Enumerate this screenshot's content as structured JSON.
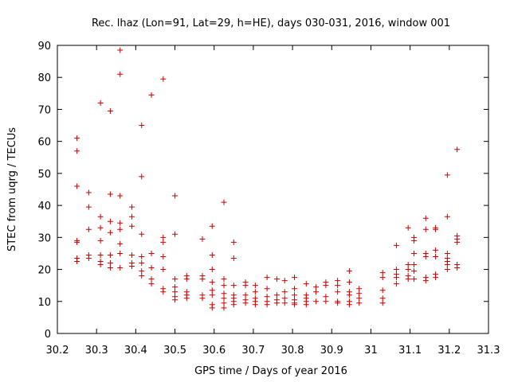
{
  "chart_data": {
    "type": "scatter",
    "title": "Rec. lhaz (Lon=91, Lat=29, h=HE), days 030-031, 2016, window 001",
    "xlabel": "GPS time / Days of year 2016",
    "ylabel": "STEC from uqrg / TECUs",
    "xlim": [
      30.2,
      31.3
    ],
    "ylim": [
      0,
      90
    ],
    "xticks": [
      "30.2",
      "30.3",
      "30.4",
      "30.5",
      "30.6",
      "30.7",
      "30.8",
      "30.9",
      "31",
      "31.1",
      "31.2",
      "31.3"
    ],
    "yticks": [
      "0",
      "10",
      "20",
      "30",
      "40",
      "50",
      "60",
      "70",
      "80",
      "90"
    ],
    "grid": false,
    "legend": false,
    "marker": "plus",
    "color": "#cc0000",
    "series": [
      {
        "points": [
          [
            30.25,
            61
          ],
          [
            30.25,
            57
          ],
          [
            30.25,
            46
          ],
          [
            30.25,
            29
          ],
          [
            30.25,
            28.5
          ],
          [
            30.25,
            23.5
          ],
          [
            30.25,
            22.5
          ],
          [
            30.28,
            44
          ],
          [
            30.28,
            39.5
          ],
          [
            30.28,
            32.5
          ],
          [
            30.28,
            24.5
          ],
          [
            30.28,
            23.5
          ],
          [
            30.31,
            72
          ],
          [
            30.31,
            36.5
          ],
          [
            30.31,
            33
          ],
          [
            30.31,
            29
          ],
          [
            30.31,
            24.5
          ],
          [
            30.31,
            22.5
          ],
          [
            30.31,
            21.5
          ],
          [
            30.335,
            69.5
          ],
          [
            30.335,
            43.5
          ],
          [
            30.335,
            35
          ],
          [
            30.335,
            31.5
          ],
          [
            30.335,
            24.5
          ],
          [
            30.335,
            22
          ],
          [
            30.335,
            20.5
          ],
          [
            30.36,
            88.5
          ],
          [
            30.36,
            81
          ],
          [
            30.36,
            43
          ],
          [
            30.36,
            34.5
          ],
          [
            30.36,
            32.5
          ],
          [
            30.36,
            28
          ],
          [
            30.36,
            25
          ],
          [
            30.36,
            20.5
          ],
          [
            30.39,
            39.5
          ],
          [
            30.39,
            36.5
          ],
          [
            30.39,
            33.5
          ],
          [
            30.39,
            24.5
          ],
          [
            30.39,
            22
          ],
          [
            30.39,
            21
          ],
          [
            30.415,
            65
          ],
          [
            30.415,
            49
          ],
          [
            30.415,
            31
          ],
          [
            30.415,
            24
          ],
          [
            30.415,
            22
          ],
          [
            30.415,
            19.5
          ],
          [
            30.415,
            18
          ],
          [
            30.44,
            74.5
          ],
          [
            30.44,
            25
          ],
          [
            30.44,
            20.5
          ],
          [
            30.44,
            17
          ],
          [
            30.44,
            15.5
          ],
          [
            30.47,
            79.5
          ],
          [
            30.47,
            30
          ],
          [
            30.47,
            28.5
          ],
          [
            30.47,
            24
          ],
          [
            30.47,
            20
          ],
          [
            30.47,
            14
          ],
          [
            30.47,
            13
          ],
          [
            30.5,
            43
          ],
          [
            30.5,
            31
          ],
          [
            30.5,
            17
          ],
          [
            30.5,
            14.5
          ],
          [
            30.5,
            13
          ],
          [
            30.5,
            11.5
          ],
          [
            30.5,
            10.5
          ],
          [
            30.53,
            18
          ],
          [
            30.53,
            17
          ],
          [
            30.53,
            13
          ],
          [
            30.53,
            12
          ],
          [
            30.53,
            11
          ],
          [
            30.57,
            29.5
          ],
          [
            30.57,
            18
          ],
          [
            30.57,
            17
          ],
          [
            30.57,
            12
          ],
          [
            30.57,
            11
          ],
          [
            30.595,
            33.5
          ],
          [
            30.595,
            24.5
          ],
          [
            30.595,
            20
          ],
          [
            30.595,
            16
          ],
          [
            30.595,
            13.5
          ],
          [
            30.595,
            12
          ],
          [
            30.595,
            9
          ],
          [
            30.595,
            8
          ],
          [
            30.625,
            41
          ],
          [
            30.625,
            17
          ],
          [
            30.625,
            15
          ],
          [
            30.625,
            12.5
          ],
          [
            30.625,
            11
          ],
          [
            30.625,
            9.5
          ],
          [
            30.625,
            8
          ],
          [
            30.65,
            28.5
          ],
          [
            30.65,
            23.5
          ],
          [
            30.65,
            15
          ],
          [
            30.65,
            12
          ],
          [
            30.65,
            11
          ],
          [
            30.65,
            10
          ],
          [
            30.65,
            9
          ],
          [
            30.68,
            16
          ],
          [
            30.68,
            15
          ],
          [
            30.68,
            12
          ],
          [
            30.68,
            10.5
          ],
          [
            30.68,
            9.5
          ],
          [
            30.705,
            15
          ],
          [
            30.705,
            13
          ],
          [
            30.705,
            11
          ],
          [
            30.705,
            10
          ],
          [
            30.705,
            9
          ],
          [
            30.735,
            17.5
          ],
          [
            30.735,
            14
          ],
          [
            30.735,
            11.5
          ],
          [
            30.735,
            10
          ],
          [
            30.735,
            9
          ],
          [
            30.76,
            17
          ],
          [
            30.76,
            12
          ],
          [
            30.76,
            10.5
          ],
          [
            30.76,
            9.5
          ],
          [
            30.78,
            16.5
          ],
          [
            30.78,
            13
          ],
          [
            30.78,
            11
          ],
          [
            30.78,
            9.5
          ],
          [
            30.805,
            17.5
          ],
          [
            30.805,
            14
          ],
          [
            30.805,
            12
          ],
          [
            30.805,
            10.5
          ],
          [
            30.805,
            9.5
          ],
          [
            30.805,
            9
          ],
          [
            30.835,
            15.5
          ],
          [
            30.835,
            12
          ],
          [
            30.835,
            11
          ],
          [
            30.835,
            10
          ],
          [
            30.835,
            9
          ],
          [
            30.86,
            14.5
          ],
          [
            30.86,
            13
          ],
          [
            30.86,
            10
          ],
          [
            30.885,
            16
          ],
          [
            30.885,
            15
          ],
          [
            30.885,
            11.5
          ],
          [
            30.885,
            10
          ],
          [
            30.915,
            16.5
          ],
          [
            30.915,
            15
          ],
          [
            30.915,
            13
          ],
          [
            30.915,
            10
          ],
          [
            30.915,
            9.5
          ],
          [
            30.945,
            19.5
          ],
          [
            30.945,
            16
          ],
          [
            30.945,
            13
          ],
          [
            30.945,
            12
          ],
          [
            30.945,
            10
          ],
          [
            30.945,
            9
          ],
          [
            30.97,
            14
          ],
          [
            30.97,
            12.5
          ],
          [
            30.97,
            11
          ],
          [
            30.97,
            9.5
          ],
          [
            31.03,
            19
          ],
          [
            31.03,
            17.5
          ],
          [
            31.03,
            13.5
          ],
          [
            31.03,
            11
          ],
          [
            31.03,
            9.5
          ],
          [
            31.065,
            27.5
          ],
          [
            31.065,
            20
          ],
          [
            31.065,
            18.5
          ],
          [
            31.065,
            17.5
          ],
          [
            31.065,
            15.5
          ],
          [
            31.095,
            33
          ],
          [
            31.095,
            21.5
          ],
          [
            31.095,
            20
          ],
          [
            31.095,
            18
          ],
          [
            31.095,
            17
          ],
          [
            31.11,
            30
          ],
          [
            31.11,
            29
          ],
          [
            31.11,
            25
          ],
          [
            31.11,
            21.5
          ],
          [
            31.11,
            19.5
          ],
          [
            31.11,
            17
          ],
          [
            31.14,
            36
          ],
          [
            31.14,
            32.5
          ],
          [
            31.14,
            25
          ],
          [
            31.14,
            24
          ],
          [
            31.14,
            17.5
          ],
          [
            31.14,
            16.5
          ],
          [
            31.165,
            33
          ],
          [
            31.165,
            32.5
          ],
          [
            31.165,
            26
          ],
          [
            31.165,
            24
          ],
          [
            31.165,
            18.5
          ],
          [
            31.165,
            17.5
          ],
          [
            31.195,
            49.5
          ],
          [
            31.195,
            36.5
          ],
          [
            31.195,
            25
          ],
          [
            31.195,
            23.5
          ],
          [
            31.195,
            22.5
          ],
          [
            31.195,
            21.5
          ],
          [
            31.195,
            20
          ],
          [
            31.22,
            57.5
          ],
          [
            31.22,
            30.5
          ],
          [
            31.22,
            29.5
          ],
          [
            31.22,
            28.5
          ],
          [
            31.22,
            21.5
          ],
          [
            31.22,
            20.5
          ]
        ]
      }
    ]
  }
}
